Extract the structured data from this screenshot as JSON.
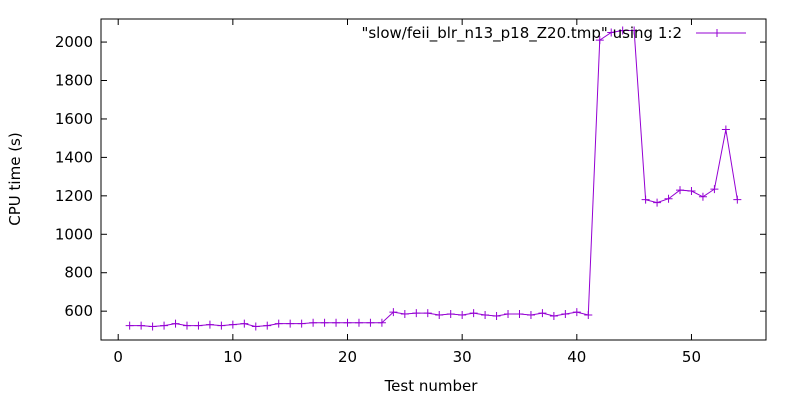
{
  "chart_data": {
    "type": "line",
    "xlabel": "Test number",
    "ylabel": "CPU time (s)",
    "xlim": [
      -1.5,
      56.5
    ],
    "ylim": [
      450,
      2120
    ],
    "xticks": [
      0,
      10,
      20,
      30,
      40,
      50
    ],
    "yticks": [
      600,
      800,
      1000,
      1200,
      1400,
      1600,
      1800,
      2000
    ],
    "grid": false,
    "legend_position": "top-right",
    "series": [
      {
        "name": "\"slow/feii_blr_n13_p18_Z20.tmp\" using 1:2",
        "color": "#9400d3",
        "marker": "plus",
        "x": [
          1,
          2,
          3,
          4,
          5,
          6,
          7,
          8,
          9,
          10,
          11,
          12,
          13,
          14,
          15,
          16,
          17,
          18,
          19,
          20,
          21,
          22,
          23,
          24,
          25,
          26,
          27,
          28,
          29,
          30,
          31,
          32,
          33,
          34,
          35,
          36,
          37,
          38,
          39,
          40,
          41,
          42,
          43,
          44,
          45,
          46,
          47,
          48,
          49,
          50,
          51,
          52,
          53,
          54
        ],
        "y": [
          525,
          525,
          520,
          525,
          535,
          525,
          525,
          530,
          525,
          530,
          535,
          520,
          525,
          535,
          535,
          535,
          540,
          540,
          540,
          540,
          540,
          540,
          540,
          595,
          585,
          590,
          590,
          580,
          585,
          580,
          590,
          580,
          575,
          585,
          585,
          580,
          590,
          575,
          585,
          595,
          580,
          2010,
          2050,
          2060,
          2060,
          1180,
          1165,
          1185,
          1230,
          1225,
          1195,
          1235,
          1545,
          1180
        ]
      }
    ]
  }
}
